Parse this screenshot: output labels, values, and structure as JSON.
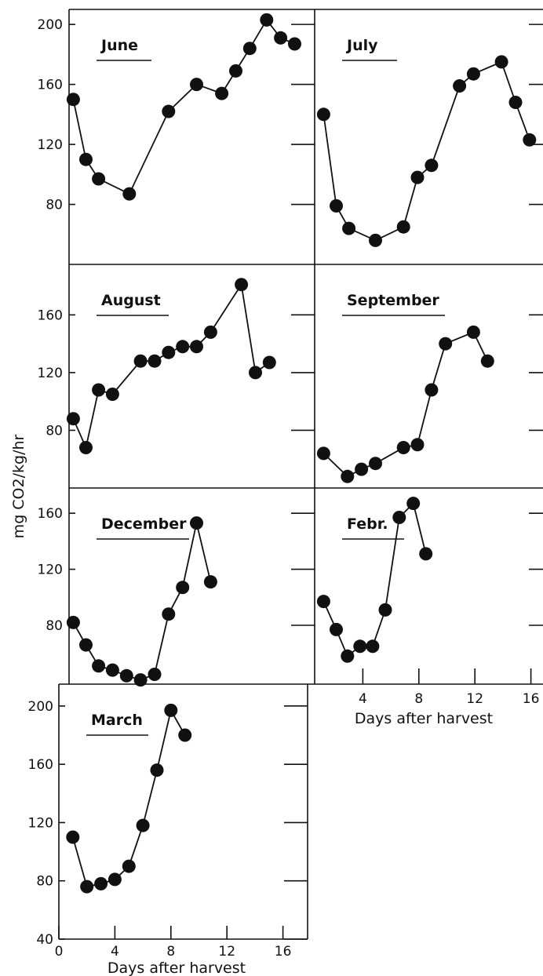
{
  "chart_data": {
    "type": "line",
    "ylabel": "mg CO2/kg/hr",
    "xlabel": "Days after harvest",
    "x_ticks": [
      0,
      4,
      8,
      12,
      16
    ],
    "panels": [
      {
        "title": "June",
        "ylim": [
          40,
          210
        ],
        "y_ticks": [
          80,
          120,
          160,
          200
        ],
        "x": [
          1.2,
          2.1,
          3.0,
          5.2,
          8.0,
          10.0,
          11.8,
          12.8,
          13.8,
          15.0,
          16.0,
          17.0
        ],
        "y": [
          150,
          110,
          97,
          87,
          142,
          160,
          154,
          169,
          184,
          203,
          191,
          187
        ]
      },
      {
        "title": "July",
        "ylim": [
          40,
          210
        ],
        "y_ticks": [
          80,
          120,
          160,
          200
        ],
        "x": [
          1.2,
          2.1,
          3.0,
          4.9,
          6.9,
          7.9,
          8.9,
          10.9,
          11.9,
          13.9,
          14.9,
          15.9
        ],
        "y": [
          140,
          79,
          64,
          56,
          65,
          98,
          106,
          159,
          167,
          175,
          148,
          123
        ]
      },
      {
        "title": "August",
        "ylim": [
          40,
          195
        ],
        "y_ticks": [
          80,
          120,
          160
        ],
        "x": [
          1.2,
          2.1,
          3.0,
          4.0,
          6.0,
          7.0,
          8.0,
          9.0,
          10.0,
          11.0,
          13.2,
          14.2,
          15.2
        ],
        "y": [
          88,
          68,
          108,
          105,
          128,
          128,
          134,
          138,
          138,
          148,
          181,
          120,
          127
        ]
      },
      {
        "title": "September",
        "ylim": [
          40,
          195
        ],
        "y_ticks": [
          80,
          120,
          160
        ],
        "x": [
          1.2,
          2.9,
          3.9,
          4.9,
          6.9,
          7.9,
          8.9,
          9.9,
          11.9,
          12.9
        ],
        "y": [
          64,
          48,
          53,
          57,
          68,
          70,
          108,
          140,
          148,
          128
        ]
      },
      {
        "title": "December",
        "ylim": [
          38,
          178
        ],
        "y_ticks": [
          80,
          120,
          160
        ],
        "x": [
          1.2,
          2.1,
          3.0,
          4.0,
          5.0,
          6.0,
          7.0,
          8.0,
          9.0,
          10.0,
          11.0
        ],
        "y": [
          82,
          66,
          51,
          48,
          44,
          41,
          45,
          88,
          107,
          153,
          111
        ]
      },
      {
        "title": "Febr.",
        "ylim": [
          38,
          178
        ],
        "y_ticks": [
          80,
          120,
          160
        ],
        "x": [
          1.2,
          2.1,
          2.9,
          3.8,
          4.7,
          5.6,
          6.6,
          7.6,
          8.5
        ],
        "y": [
          97,
          77,
          58,
          65,
          65,
          91,
          157,
          167,
          131
        ]
      },
      {
        "title": "March",
        "ylim": [
          40,
          215
        ],
        "y_ticks": [
          40,
          80,
          120,
          160,
          200
        ],
        "x": [
          1.0,
          2.0,
          3.0,
          4.0,
          5.0,
          6.0,
          7.0,
          8.0,
          9.0
        ],
        "y": [
          110,
          76,
          78,
          81,
          90,
          118,
          156,
          197,
          180
        ]
      }
    ]
  }
}
